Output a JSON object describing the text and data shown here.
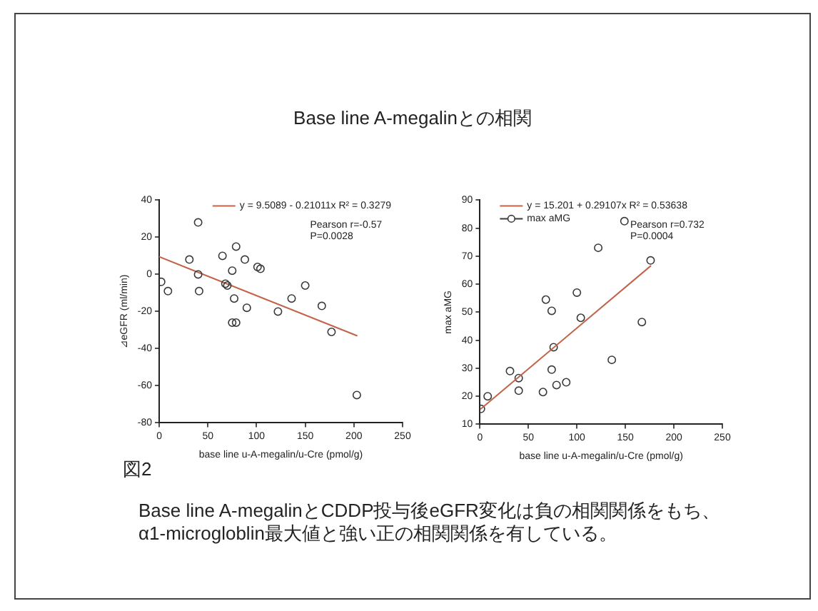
{
  "chart_data": [
    {
      "type": "scatter",
      "title": "Base line A-megalinとの相関",
      "xlabel": "base line u-A-megalin/u-Cre (pmol/g)",
      "ylabel": "⊿eGFR (ml/min)",
      "xlim": [
        0,
        250
      ],
      "xticks": [
        0,
        50,
        100,
        150,
        200,
        250
      ],
      "ylim": [
        -80,
        40
      ],
      "yticks": [
        -80,
        -60,
        -40,
        -20,
        0,
        20,
        40
      ],
      "grid": false,
      "legend": "top right",
      "series": [
        {
          "type": "scatter",
          "color": "#3a3a3a",
          "marker": "circle",
          "x": [
            2,
            9,
            31,
            40,
            40,
            41,
            65,
            68,
            70,
            75,
            75,
            77,
            79,
            79,
            88,
            90,
            101,
            104,
            122,
            136,
            150,
            167,
            177,
            203
          ],
          "values": [
            -4,
            -9,
            8,
            28,
            0,
            -9,
            10,
            -5,
            -6,
            2,
            -26,
            -13,
            15,
            -26,
            8,
            -18,
            4,
            3,
            -20,
            -13,
            -6,
            -17,
            -31,
            -65
          ]
        },
        {
          "type": "line",
          "name": "y = 9.5089 - 0.21011x R² = 0.3279",
          "color": "#c0644a",
          "marker": "none",
          "line_style": "solid",
          "x": [
            0,
            203
          ],
          "values": [
            9.5,
            -33
          ]
        }
      ],
      "annotations": [
        "Pearson r=-0.57",
        "P=0.0028",
        "図2",
        "Base line A-megalinとCDDP投与後eGFR変化は負の相関関係をもち、",
        "α1-microgloblin最大値と強い正の相関関係を有している。"
      ]
    },
    {
      "type": "scatter",
      "xlabel": "base line u-A-megalin/u-Cre (pmol/g)",
      "ylabel": "max aMG",
      "xlim": [
        0,
        250
      ],
      "xticks": [
        0,
        50,
        100,
        150,
        200,
        250
      ],
      "ylim": [
        10,
        90
      ],
      "yticks": [
        10,
        20,
        30,
        40,
        50,
        60,
        70,
        80,
        90
      ],
      "grid": false,
      "legend": "top left",
      "series": [
        {
          "type": "line",
          "name": "y = 15.201 + 0.29107x R² = 0.53638",
          "color": "#c0644a",
          "marker": "none",
          "line_style": "solid",
          "x": [
            1,
            176
          ],
          "values": [
            15.5,
            66.5
          ]
        },
        {
          "type": "scatter",
          "name": "max aMG",
          "color": "#3a3a3a",
          "marker": "circle",
          "x": [
            149,
            122,
            176,
            100,
            68,
            74,
            104,
            167,
            76,
            136,
            31,
            74,
            40,
            89,
            79,
            40,
            65,
            8,
            1
          ],
          "values": [
            82.5,
            73,
            68.5,
            57,
            54.5,
            50.5,
            48,
            46.5,
            37.5,
            33,
            29,
            29.5,
            26.5,
            25,
            24,
            22,
            21.5,
            20,
            15.5
          ]
        }
      ],
      "annotations": [
        "Pearson r=0.732",
        "P=0.0004"
      ]
    }
  ]
}
